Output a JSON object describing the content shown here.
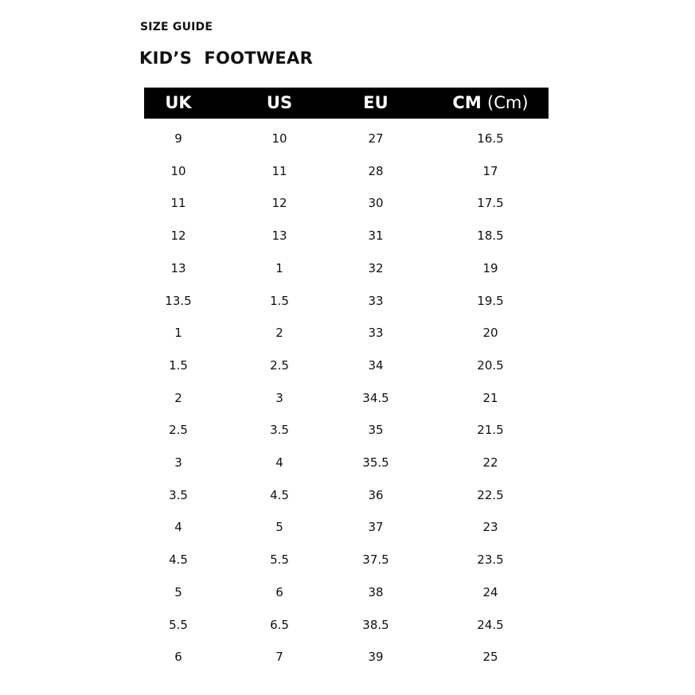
{
  "size_guide_label": "SIZE GUIDE",
  "title": "KID’S  FOOTWEAR",
  "table": {
    "headers": [
      {
        "main": "UK",
        "unit": ""
      },
      {
        "main": "US",
        "unit": ""
      },
      {
        "main": "EU",
        "unit": ""
      },
      {
        "main": "CM",
        "unit": "(Cm)"
      }
    ],
    "rows": [
      [
        "9",
        "10",
        "27",
        "16.5"
      ],
      [
        "10",
        "11",
        "28",
        "17"
      ],
      [
        "11",
        "12",
        "30",
        "17.5"
      ],
      [
        "12",
        "13",
        "31",
        "18.5"
      ],
      [
        "13",
        "1",
        "32",
        "19"
      ],
      [
        "13.5",
        "1.5",
        "33",
        "19.5"
      ],
      [
        "1",
        "2",
        "33",
        "20"
      ],
      [
        "1.5",
        "2.5",
        "34",
        "20.5"
      ],
      [
        "2",
        "3",
        "34.5",
        "21"
      ],
      [
        "2.5",
        "3.5",
        "35",
        "21.5"
      ],
      [
        "3",
        "4",
        "35.5",
        "22"
      ],
      [
        "3.5",
        "4.5",
        "36",
        "22.5"
      ],
      [
        "4",
        "5",
        "37",
        "23"
      ],
      [
        "4.5",
        "5.5",
        "37.5",
        "23.5"
      ],
      [
        "5",
        "6",
        "38",
        "24"
      ],
      [
        "5.5",
        "6.5",
        "38.5",
        "24.5"
      ],
      [
        "6",
        "7",
        "39",
        "25"
      ]
    ]
  }
}
